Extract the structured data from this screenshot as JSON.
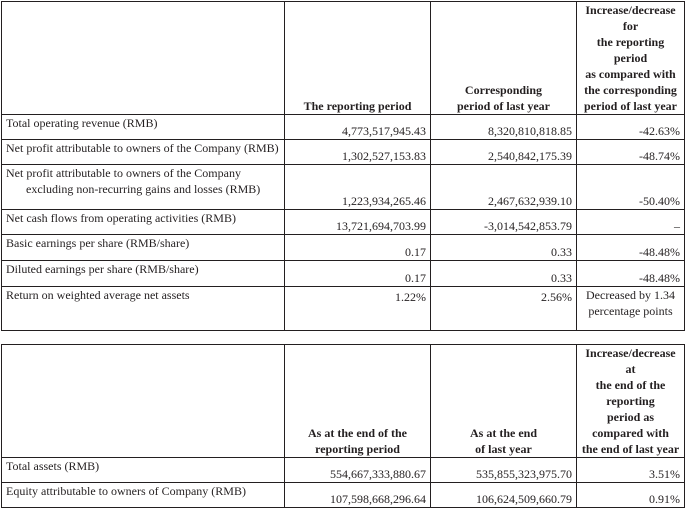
{
  "table1": {
    "headers": {
      "col1": "The reporting period",
      "col2_line1": "Corresponding",
      "col2_line2": "period of last year",
      "col3_line1": "Increase/decrease for",
      "col3_line2": "the reporting period",
      "col3_line3": "as compared with",
      "col3_line4": "the corresponding",
      "col3_line5": "period of last year"
    },
    "rows": [
      {
        "label": "Total operating revenue (RMB)",
        "current": "4,773,517,945.43",
        "prior": "8,320,810,818.85",
        "change": "-42.63%"
      },
      {
        "label": "Net profit attributable to owners of the Company (RMB)",
        "current": "1,302,527,153.83",
        "prior": "2,540,842,175.39",
        "change": "-48.74%"
      },
      {
        "label_line1": "Net profit attributable to owners of the Company",
        "label_line2": "excluding non-recurring gains and losses (RMB)",
        "current": "1,223,934,265.46",
        "prior": "2,467,632,939.10",
        "change": "-50.40%"
      },
      {
        "label": "Net cash flows from operating activities (RMB)",
        "current": "13,721,694,703.99",
        "prior": "-3,014,542,853.79",
        "change": "–"
      },
      {
        "label": "Basic earnings per share (RMB/share)",
        "current": "0.17",
        "prior": "0.33",
        "change": "-48.48%"
      },
      {
        "label": "Diluted earnings per share (RMB/share)",
        "current": "0.17",
        "prior": "0.33",
        "change": "-48.48%"
      },
      {
        "label": "Return on weighted average net assets",
        "current": "1.22%",
        "prior": "2.56%",
        "change_line1": "Decreased by 1.34",
        "change_line2": "percentage points"
      }
    ]
  },
  "table2": {
    "headers": {
      "col1_line1": "As at the end of the",
      "col1_line2": "reporting period",
      "col2_line1": "As at the end",
      "col2_line2": "of last year",
      "col3_line1": "Increase/decrease at",
      "col3_line2": "the end of the reporting",
      "col3_line3": "period as compared with",
      "col3_line4": "the end of last year"
    },
    "rows": [
      {
        "label": "Total assets (RMB)",
        "current": "554,667,333,880.67",
        "prior": "535,855,323,975.70",
        "change": "3.51%"
      },
      {
        "label": "Equity attributable to owners of Company (RMB)",
        "current": "107,598,668,296.64",
        "prior": "106,624,509,660.79",
        "change": "0.91%"
      }
    ]
  }
}
